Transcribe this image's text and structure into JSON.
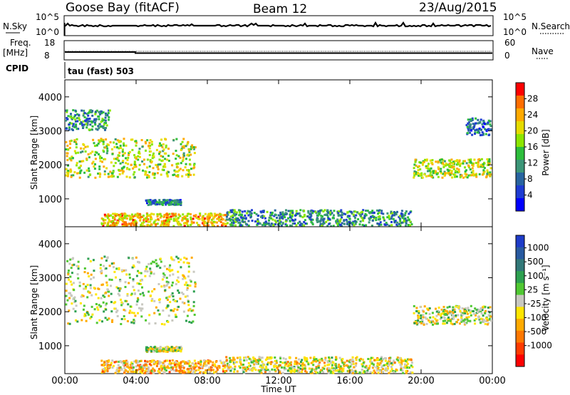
{
  "header": {
    "station": "Goose Bay (fitACF)",
    "beam": "Beam 12",
    "date": "23/Aug/2015"
  },
  "params": {
    "nsky_label": "N.Sky",
    "nsky_ticks": [
      "10^5",
      "10^0"
    ],
    "nsearch_label": "N.Search",
    "nsearch_ticks": [
      "10^5",
      "10^0"
    ],
    "freq_label": "Freq.",
    "freq_unit": "[MHz]",
    "freq_ticks": [
      "18",
      "8"
    ],
    "nave_label": "Nave",
    "nave_ticks": [
      "60",
      "0"
    ],
    "cpid_label": "CPID",
    "cpid_value": "tau (fast) 503"
  },
  "chart_data": [
    {
      "type": "heatmap",
      "name": "power",
      "ylabel": "Slant Range [km]",
      "xlabel": "",
      "x_ticks": [
        "00:00",
        "04:00",
        "08:00",
        "12:00",
        "16:00",
        "20:00",
        "00:00"
      ],
      "y_ticks": [
        1000,
        2000,
        3000,
        4000
      ],
      "ylim": [
        180,
        4500
      ],
      "colorbar": {
        "label": "Power [dB]",
        "ticks": [
          "28",
          "24",
          "20",
          "16",
          "12",
          "8",
          "4"
        ],
        "colors": [
          "#ff0000",
          "#ff6e00",
          "#ffaa00",
          "#e6dc00",
          "#8ce600",
          "#2dbe3c",
          "#3c9678",
          "#2864a0",
          "#1e3cd2",
          "#0000ff"
        ]
      },
      "echo_bands": [
        {
          "t_start": 0.0,
          "t_end": 2.5,
          "r_start": 3050,
          "r_end": 3650,
          "value": 10
        },
        {
          "t_start": 0.0,
          "t_end": 7.3,
          "r_start": 1650,
          "r_end": 2800,
          "value": 18
        },
        {
          "t_start": 4.5,
          "t_end": 6.5,
          "r_start": 850,
          "r_end": 1000,
          "value": 8
        },
        {
          "t_start": 2.0,
          "t_end": 9.0,
          "r_start": 200,
          "r_end": 600,
          "value": 22
        },
        {
          "t_start": 9.0,
          "t_end": 19.5,
          "r_start": 180,
          "r_end": 700,
          "value": 10
        },
        {
          "t_start": 19.5,
          "t_end": 24.0,
          "r_start": 1650,
          "r_end": 2200,
          "value": 18
        },
        {
          "t_start": 22.5,
          "t_end": 24.0,
          "r_start": 2900,
          "r_end": 3400,
          "value": 8
        }
      ]
    },
    {
      "type": "heatmap",
      "name": "velocity",
      "ylabel": "Slant Range [km]",
      "xlabel": "Time UT",
      "x_ticks": [
        "00:00",
        "04:00",
        "08:00",
        "12:00",
        "16:00",
        "20:00",
        "00:00"
      ],
      "y_ticks": [
        1000,
        2000,
        3000,
        4000
      ],
      "ylim": [
        180,
        4500
      ],
      "colorbar": {
        "label": "Velocity [m s⁻¹]",
        "ticks": [
          "1000",
          "500",
          "100",
          "25",
          "-25",
          "-100",
          "-500",
          "-1000"
        ],
        "colors": [
          "#1e3cc8",
          "#285aa0",
          "#327878",
          "#2da050",
          "#50c832",
          "#c8c8c0",
          "#ffe600",
          "#ffaa00",
          "#ff7800",
          "#ff3c00",
          "#ff0000"
        ]
      },
      "echo_bands": [
        {
          "t_start": 0.0,
          "t_end": 7.3,
          "r_start": 1650,
          "r_end": 3650,
          "value": 0
        },
        {
          "t_start": 4.5,
          "t_end": 6.5,
          "r_start": 850,
          "r_end": 1000,
          "value": 0
        },
        {
          "t_start": 2.0,
          "t_end": 9.0,
          "r_start": 200,
          "r_end": 600,
          "value": -300
        },
        {
          "t_start": 9.0,
          "t_end": 19.5,
          "r_start": 180,
          "r_end": 700,
          "value": -100
        },
        {
          "t_start": 19.5,
          "t_end": 24.0,
          "r_start": 1650,
          "r_end": 2200,
          "value": 0
        }
      ]
    }
  ]
}
